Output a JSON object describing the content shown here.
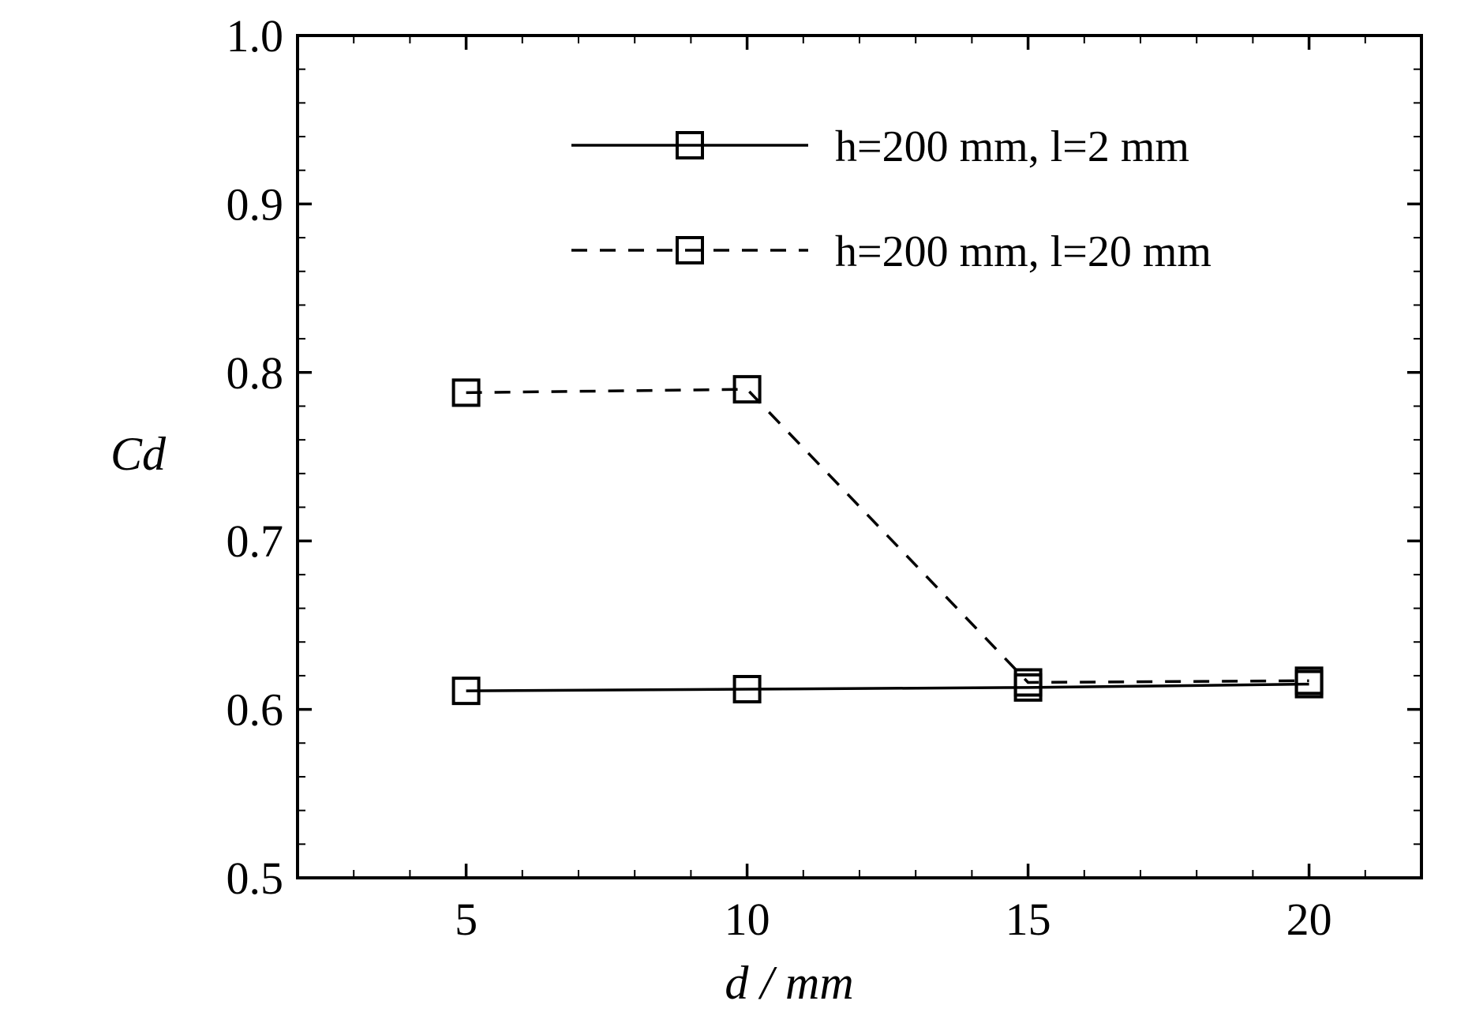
{
  "chart_data": {
    "type": "line",
    "x_label": "d / mm",
    "y_label": "Cd",
    "x": [
      5,
      10,
      15,
      20
    ],
    "series": [
      {
        "name": "h=200 mm, l=2 mm",
        "color": "#000000",
        "dash": "solid",
        "values": [
          0.611,
          0.612,
          0.613,
          0.615
        ]
      },
      {
        "name": "h=200 mm, l=20 mm",
        "color": "#000000",
        "dash": "dashed",
        "values": [
          0.788,
          0.79,
          0.616,
          0.617
        ]
      }
    ],
    "xlim": [
      2,
      22
    ],
    "xticks": [
      5,
      10,
      15,
      20
    ],
    "ylim": [
      0.5,
      1.0
    ],
    "yticks": [
      {
        "value": 0.5,
        "label": "0.5"
      },
      {
        "value": 0.6,
        "label": "0.6"
      },
      {
        "value": 0.7,
        "label": "0.7"
      },
      {
        "value": 0.8,
        "label": "0.8"
      },
      {
        "value": 0.9,
        "label": "0.9"
      },
      {
        "value": 1.0,
        "label": "1.0"
      }
    ],
    "legend": "upper right",
    "marker": "square"
  }
}
